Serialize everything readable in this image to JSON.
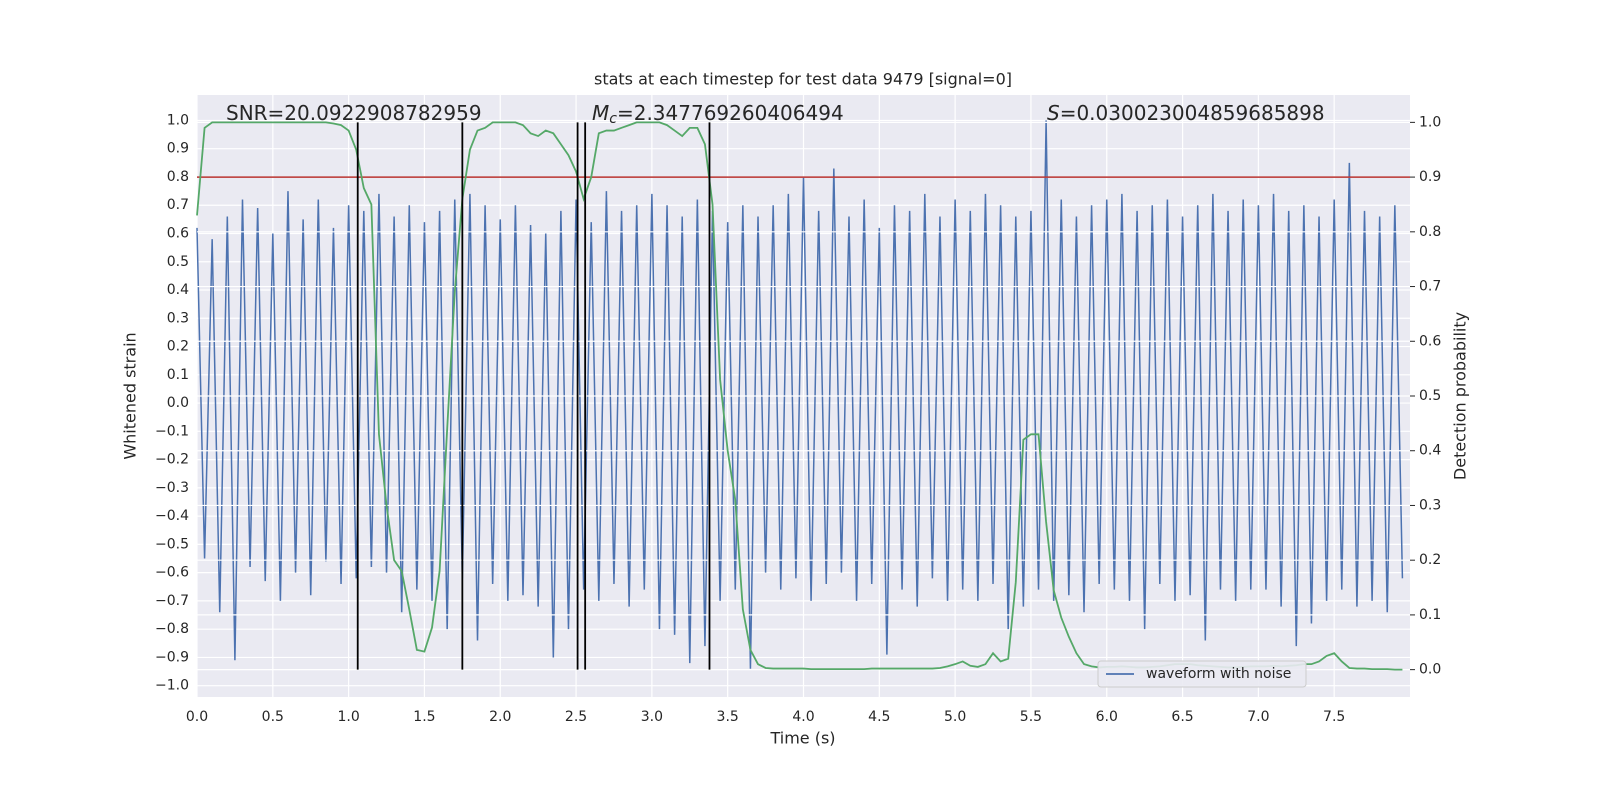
{
  "chart_data": {
    "type": "line",
    "title": "stats at each timestep for test data 9479 [signal=0]",
    "x_label": "Time (s)",
    "y_label": "Whitened strain",
    "y2_label": "Detection probability",
    "annotations": [
      {
        "text": "SNR=20.0922908782959"
      },
      {
        "symbol": "M",
        "subscript": "c",
        "text": "=2.347769260406494"
      },
      {
        "symbol": "S",
        "text": "=0.030023004859685898"
      }
    ],
    "x": [
      0,
      0.05,
      0.1,
      0.15,
      0.2,
      0.25,
      0.3,
      0.35,
      0.4,
      0.45,
      0.5,
      0.55,
      0.6,
      0.65,
      0.7,
      0.75,
      0.8,
      0.85,
      0.9,
      0.95,
      1,
      1.05,
      1.1,
      1.15,
      1.2,
      1.25,
      1.3,
      1.35,
      1.4,
      1.45,
      1.5,
      1.55,
      1.6,
      1.65,
      1.7,
      1.75,
      1.8,
      1.85,
      1.9,
      1.95,
      2,
      2.05,
      2.1,
      2.15,
      2.2,
      2.25,
      2.3,
      2.35,
      2.4,
      2.45,
      2.5,
      2.55,
      2.6,
      2.65,
      2.7,
      2.75,
      2.8,
      2.85,
      2.9,
      2.95,
      3,
      3.05,
      3.1,
      3.15,
      3.2,
      3.25,
      3.3,
      3.35,
      3.4,
      3.45,
      3.5,
      3.55,
      3.6,
      3.65,
      3.7,
      3.75,
      3.8,
      3.85,
      3.9,
      3.95,
      4,
      4.05,
      4.1,
      4.15,
      4.2,
      4.25,
      4.3,
      4.35,
      4.4,
      4.45,
      4.5,
      4.55,
      4.6,
      4.65,
      4.7,
      4.75,
      4.8,
      4.85,
      4.9,
      4.95,
      5,
      5.05,
      5.1,
      5.15,
      5.2,
      5.25,
      5.3,
      5.35,
      5.4,
      5.45,
      5.5,
      5.55,
      5.6,
      5.65,
      5.7,
      5.75,
      5.8,
      5.85,
      5.9,
      5.95,
      6,
      6.05,
      6.1,
      6.15,
      6.2,
      6.25,
      6.3,
      6.35,
      6.4,
      6.45,
      6.5,
      6.55,
      6.6,
      6.65,
      6.7,
      6.75,
      6.8,
      6.85,
      6.9,
      6.95,
      7,
      7.05,
      7.1,
      7.15,
      7.2,
      7.25,
      7.3,
      7.35,
      7.4,
      7.45,
      7.5,
      7.55,
      7.6,
      7.65,
      7.7,
      7.75,
      7.8,
      7.85,
      7.9,
      7.95
    ],
    "series": [
      {
        "name": "waveform with noise",
        "color": "#4c72b0",
        "values": [
          0.62,
          -0.55,
          0.58,
          -0.74,
          0.66,
          -0.91,
          0.72,
          -0.58,
          0.69,
          -0.63,
          0.6,
          -0.7,
          0.75,
          -0.6,
          0.65,
          -0.68,
          0.72,
          -0.56,
          0.62,
          -0.64,
          0.7,
          -0.62,
          0.68,
          -0.58,
          0.74,
          -0.6,
          0.66,
          -0.74,
          0.7,
          -0.66,
          0.64,
          -0.7,
          0.68,
          -0.8,
          0.72,
          -0.62,
          0.74,
          -0.84,
          0.7,
          -0.64,
          0.65,
          -0.7,
          0.7,
          -0.68,
          0.63,
          -0.72,
          0.6,
          -0.9,
          0.68,
          -0.8,
          0.72,
          -0.66,
          0.64,
          -0.7,
          0.75,
          -0.64,
          0.68,
          -0.72,
          0.7,
          -0.66,
          0.74,
          -0.8,
          0.7,
          -0.82,
          0.66,
          -0.92,
          0.72,
          -0.86,
          0.68,
          -0.7,
          0.64,
          -0.66,
          0.7,
          -0.94,
          0.66,
          -0.6,
          0.7,
          -0.66,
          0.74,
          -0.62,
          0.8,
          -0.7,
          0.68,
          -0.64,
          0.83,
          -0.6,
          0.66,
          -0.7,
          0.72,
          -0.64,
          0.62,
          -0.89,
          0.7,
          -0.66,
          0.68,
          -0.72,
          0.74,
          -0.62,
          0.66,
          -0.7,
          0.72,
          -0.66,
          0.68,
          -0.7,
          0.74,
          -0.64,
          0.7,
          -0.8,
          0.66,
          -0.72,
          0.68,
          -0.66,
          1.0,
          -0.7,
          0.72,
          -0.68,
          0.66,
          -0.74,
          0.7,
          -0.64,
          0.72,
          -0.66,
          0.74,
          -0.7,
          0.68,
          -0.8,
          0.7,
          -0.64,
          0.72,
          -0.7,
          0.66,
          -0.68,
          0.7,
          -0.84,
          0.74,
          -0.66,
          0.68,
          -0.7,
          0.72,
          -0.66,
          0.7,
          -0.66,
          0.74,
          -0.72,
          0.68,
          -0.86,
          0.7,
          -0.78,
          0.66,
          -0.7,
          0.72,
          -0.66,
          0.85,
          -0.72,
          0.68,
          -0.7,
          0.66,
          -0.74,
          0.7,
          -0.62
        ]
      },
      {
        "color": "#55a868",
        "axis": "y2",
        "values": [
          0.83,
          0.99,
          1.0,
          1.0,
          1.0,
          1.0,
          1.0,
          1.0,
          1.0,
          1.0,
          1.0,
          1.0,
          1.0,
          1.0,
          1.0,
          1.0,
          1.0,
          1.0,
          0.998,
          0.995,
          0.985,
          0.95,
          0.88,
          0.85,
          0.43,
          0.3,
          0.2,
          0.18,
          0.11,
          0.036,
          0.033,
          0.077,
          0.18,
          0.44,
          0.69,
          0.86,
          0.95,
          0.985,
          0.99,
          1.0,
          1.0,
          1.0,
          1.0,
          0.995,
          0.98,
          0.975,
          0.985,
          0.98,
          0.96,
          0.94,
          0.91,
          0.86,
          0.9,
          0.98,
          0.985,
          0.985,
          0.99,
          0.995,
          1.0,
          1.0,
          1.0,
          1.0,
          0.995,
          0.985,
          0.975,
          0.99,
          0.99,
          0.96,
          0.85,
          0.53,
          0.4,
          0.31,
          0.11,
          0.036,
          0.01,
          0.003,
          0.002,
          0.002,
          0.002,
          0.002,
          0.002,
          0.001,
          0.001,
          0.001,
          0.001,
          0.001,
          0.001,
          0.001,
          0.001,
          0.002,
          0.002,
          0.002,
          0.002,
          0.002,
          0.002,
          0.002,
          0.002,
          0.002,
          0.003,
          0.006,
          0.01,
          0.015,
          0.007,
          0.005,
          0.01,
          0.03,
          0.015,
          0.02,
          0.16,
          0.42,
          0.43,
          0.43,
          0.27,
          0.145,
          0.095,
          0.06,
          0.03,
          0.01,
          0.006,
          0.004,
          0.005,
          0.005,
          0.006,
          0.005,
          0.004,
          0.004,
          0.005,
          0.006,
          0.008,
          0.01,
          0.01,
          0.01,
          0.008,
          0.007,
          0.006,
          0.005,
          0.004,
          0.004,
          0.005,
          0.006,
          0.006,
          0.006,
          0.007,
          0.006,
          0.007,
          0.008,
          0.01,
          0.01,
          0.015,
          0.025,
          0.03,
          0.015,
          0.003,
          0.002,
          0.002,
          0.001,
          0.001,
          0.001,
          0.0,
          0.0
        ]
      }
    ],
    "threshold": {
      "value": 0.9,
      "axis": "y2",
      "color": "#b8312f"
    },
    "vlines": [
      1.06,
      1.75,
      2.51,
      2.56,
      3.38
    ],
    "vline_span": [
      0.0,
      1.0
    ],
    "vline_color": "#000000",
    "xlim": [
      0,
      8.0
    ],
    "ylim": [
      -1.04,
      1.09
    ],
    "y2lim": [
      -0.05,
      1.05
    ],
    "xticks": [
      {
        "value": 0,
        "label": "0.0"
      },
      {
        "value": 0.5,
        "label": "0.5"
      },
      {
        "value": 1,
        "label": "1.0"
      },
      {
        "value": 1.5,
        "label": "1.5"
      },
      {
        "value": 2,
        "label": "2.0"
      },
      {
        "value": 2.5,
        "label": "2.5"
      },
      {
        "value": 3,
        "label": "3.0"
      },
      {
        "value": 3.5,
        "label": "3.5"
      },
      {
        "value": 4,
        "label": "4.0"
      },
      {
        "value": 4.5,
        "label": "4.5"
      },
      {
        "value": 5,
        "label": "5.0"
      },
      {
        "value": 5.5,
        "label": "5.5"
      },
      {
        "value": 6,
        "label": "6.0"
      },
      {
        "value": 6.5,
        "label": "6.5"
      },
      {
        "value": 7,
        "label": "7.0"
      },
      {
        "value": 7.5,
        "label": "7.5"
      }
    ],
    "yticks": [
      {
        "value": -1,
        "label": "−1.0"
      },
      {
        "value": -0.9,
        "label": "−0.9"
      },
      {
        "value": -0.8,
        "label": "−0.8"
      },
      {
        "value": -0.7,
        "label": "−0.7"
      },
      {
        "value": -0.6,
        "label": "−0.6"
      },
      {
        "value": -0.5,
        "label": "−0.5"
      },
      {
        "value": -0.4,
        "label": "−0.4"
      },
      {
        "value": -0.3,
        "label": "−0.3"
      },
      {
        "value": -0.2,
        "label": "−0.2"
      },
      {
        "value": -0.1,
        "label": "−0.1"
      },
      {
        "value": 0,
        "label": "0.0"
      },
      {
        "value": 0.1,
        "label": "0.1"
      },
      {
        "value": 0.2,
        "label": "0.2"
      },
      {
        "value": 0.3,
        "label": "0.3"
      },
      {
        "value": 0.4,
        "label": "0.4"
      },
      {
        "value": 0.5,
        "label": "0.5"
      },
      {
        "value": 0.6,
        "label": "0.6"
      },
      {
        "value": 0.7,
        "label": "0.7"
      },
      {
        "value": 0.8,
        "label": "0.8"
      },
      {
        "value": 0.9,
        "label": "0.9"
      },
      {
        "value": 1,
        "label": "1.0"
      }
    ],
    "y2ticks": [
      {
        "value": 0,
        "label": "0.0"
      },
      {
        "value": 0.1,
        "label": "0.1"
      },
      {
        "value": 0.2,
        "label": "0.2"
      },
      {
        "value": 0.3,
        "label": "0.3"
      },
      {
        "value": 0.4,
        "label": "0.4"
      },
      {
        "value": 0.5,
        "label": "0.5"
      },
      {
        "value": 0.6,
        "label": "0.6"
      },
      {
        "value": 0.7,
        "label": "0.7"
      },
      {
        "value": 0.8,
        "label": "0.8"
      },
      {
        "value": 0.9,
        "label": "0.9"
      },
      {
        "value": 1,
        "label": "1.0"
      }
    ],
    "grid": true,
    "legend": "lower right"
  }
}
